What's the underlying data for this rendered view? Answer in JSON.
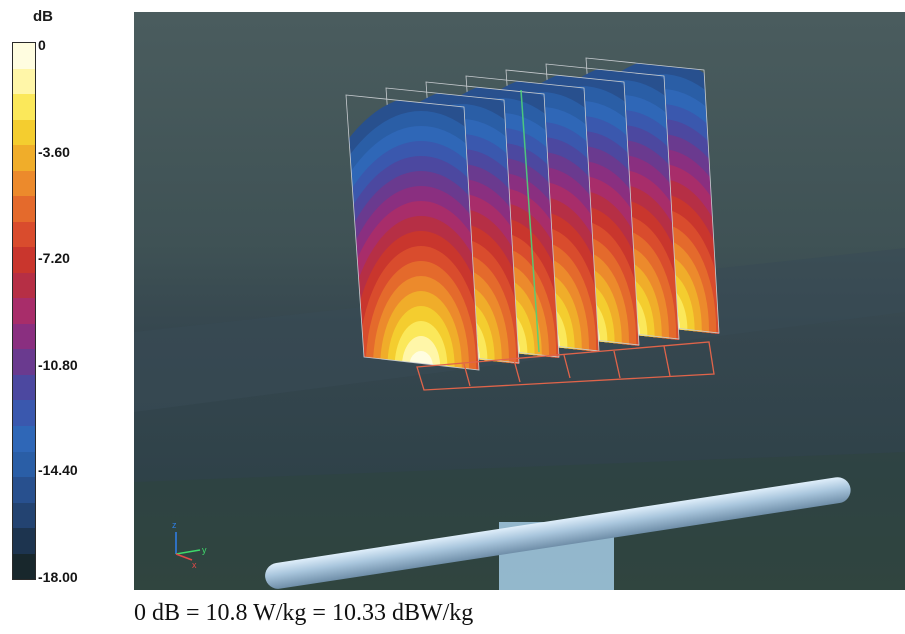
{
  "colorbar": {
    "unit": "dB",
    "ticks": [
      "0",
      "-3.60",
      "-7.20",
      "-10.80",
      "-14.40",
      "-18.00"
    ],
    "colors": [
      "#fffde0",
      "#fff6a8",
      "#fbe85a",
      "#f4cd2f",
      "#f0ad2a",
      "#ec8a2c",
      "#e46a2c",
      "#d94c2d",
      "#c9362d",
      "#b62f45",
      "#a82d6a",
      "#8a2f80",
      "#6a3a8f",
      "#4c48a0",
      "#3a58ae",
      "#2f67b7",
      "#2a5ea6",
      "#28508e",
      "#234371",
      "#1d344f",
      "#18272c"
    ]
  },
  "caption": "0 dB = 10.8 W/kg = 10.33 dBW/kg",
  "scene": {
    "background_color": "#3f5257",
    "rod_color": "#a9c6dd"
  },
  "axes_indicator": {
    "x_label": "x",
    "y_label": "y",
    "z_label": "z"
  }
}
